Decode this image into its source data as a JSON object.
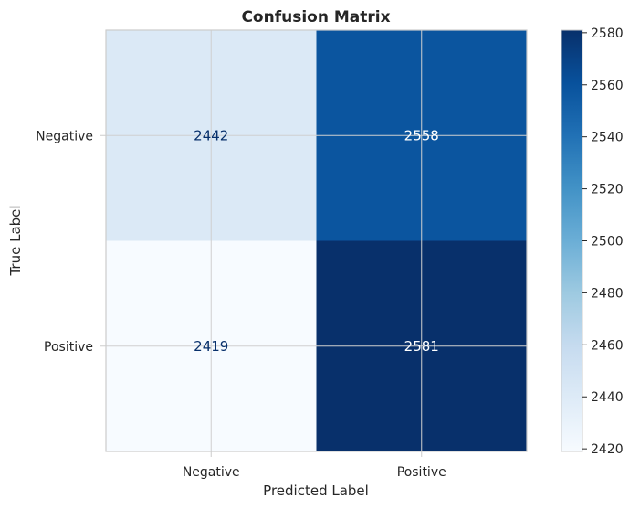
{
  "chart_data": {
    "type": "heatmap",
    "title": "Confusion Matrix",
    "xlabel": "Predicted Label",
    "ylabel": "True Label",
    "x_categories": [
      "Negative",
      "Positive"
    ],
    "y_categories": [
      "Negative",
      "Positive"
    ],
    "values": [
      [
        2442,
        2558
      ],
      [
        2419,
        2581
      ]
    ],
    "colormap": "Blues",
    "color_range": [
      2419,
      2581
    ],
    "colorbar_ticks": [
      2420,
      2440,
      2460,
      2480,
      2500,
      2520,
      2540,
      2560,
      2580
    ],
    "grid": true
  }
}
